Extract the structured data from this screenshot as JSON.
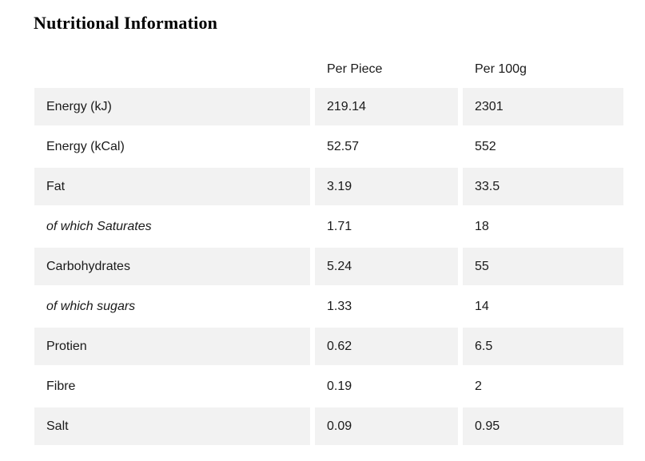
{
  "title": "Nutritional Information",
  "table": {
    "columns": [
      "",
      "Per Piece",
      "Per 100g"
    ],
    "rows": [
      {
        "label": "Energy (kJ)",
        "per_piece": "219.14",
        "per_100g": "2301",
        "italic": false
      },
      {
        "label": "Energy (kCal)",
        "per_piece": "52.57",
        "per_100g": "552",
        "italic": false
      },
      {
        "label": "Fat",
        "per_piece": "3.19",
        "per_100g": "33.5",
        "italic": false
      },
      {
        "label": "of which Saturates",
        "per_piece": "1.71",
        "per_100g": "18",
        "italic": true
      },
      {
        "label": "Carbohydrates",
        "per_piece": "5.24",
        "per_100g": "55",
        "italic": false
      },
      {
        "label": "of which sugars",
        "per_piece": "1.33",
        "per_100g": "14",
        "italic": true
      },
      {
        "label": "Protien",
        "per_piece": "0.62",
        "per_100g": "6.5",
        "italic": false
      },
      {
        "label": "Fibre",
        "per_piece": "0.19",
        "per_100g": "2",
        "italic": false
      },
      {
        "label": "Salt",
        "per_piece": "0.09",
        "per_100g": "0.95",
        "italic": false
      }
    ],
    "colors": {
      "stripe": "#f2f2f2",
      "gap": "#ffffff",
      "text": "#1a1a1a",
      "title_text": "#000000"
    }
  }
}
